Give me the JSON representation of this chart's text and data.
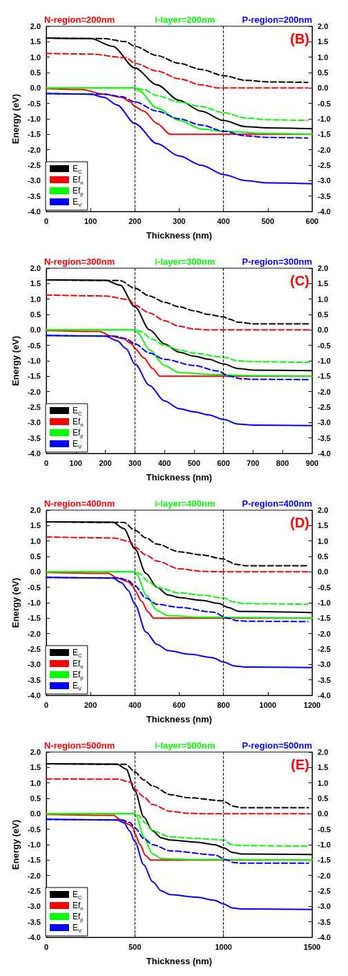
{
  "chart_data": [
    {
      "type": "line",
      "xlabel": "Thickness (nm)",
      "ylabel": "Energy (eV)",
      "annotations": [
        "N-region=200nm",
        "i-layer=200nm",
        "P-region=200nm",
        "(B)"
      ],
      "xlim": [
        0,
        600
      ],
      "xticks": [
        0,
        100,
        200,
        300,
        400,
        500,
        600
      ],
      "ylim": [
        -4,
        2
      ],
      "yticks": [
        {
          "value": 2,
          "label": "2.0"
        },
        {
          "value": 1.5,
          "label": "1.5"
        },
        {
          "value": 1,
          "label": "1.0"
        },
        {
          "value": 0.5,
          "label": "0.5"
        },
        {
          "value": 0,
          "label": "0.0"
        },
        {
          "value": -0.5,
          "label": "-0.5"
        },
        {
          "value": -1,
          "label": "-1.0"
        },
        {
          "value": -1.5,
          "label": "-1.5"
        },
        {
          "value": -2,
          "label": "-2.0"
        },
        {
          "value": -2.5,
          "label": "-2.5"
        },
        {
          "value": -3,
          "label": "-3.0"
        },
        {
          "value": -3.5,
          "label": "-3.5"
        },
        {
          "value": -4,
          "label": "-4.0"
        }
      ],
      "y2lim": [
        -4,
        2
      ],
      "y2ticks": [
        {
          "value": 2,
          "label": "2.0"
        },
        {
          "value": 1.5,
          "label": "1.5"
        },
        {
          "value": 1,
          "label": "1.0"
        },
        {
          "value": 0.5,
          "label": "0.5"
        },
        {
          "value": 0,
          "label": "0.0"
        },
        {
          "value": -0.5,
          "label": "-0.5"
        },
        {
          "value": -1,
          "label": "-1.0"
        },
        {
          "value": -1.5,
          "label": "-1.5"
        },
        {
          "value": -2,
          "label": "-2.0"
        },
        {
          "value": -2.5,
          "label": "-2.5"
        },
        {
          "value": -3,
          "label": "-3.0"
        },
        {
          "value": -3.5,
          "label": "-3.5"
        },
        {
          "value": -4,
          "label": "-4.0"
        }
      ],
      "grid": false,
      "legend": "bottom left",
      "marker": "none",
      "ref_lines": [
        {
          "axis": "x",
          "value": 200,
          "color": "#000000",
          "line_style": "dashed"
        },
        {
          "axis": "x",
          "value": 400,
          "color": "#000000",
          "line_style": "dashed"
        }
      ],
      "series": [
        {
          "name": "E$_{C}$",
          "color": "#000000",
          "line_style": "solid",
          "x": [
            0,
            100,
            150,
            200,
            250,
            300,
            350,
            400,
            450,
            500,
            600
          ],
          "values": [
            1.62,
            1.6,
            1.35,
            0.65,
            0.1,
            -0.4,
            -0.75,
            -1.05,
            -1.25,
            -1.29,
            -1.32
          ]
        },
        {
          "name": "Ef$_{n}$",
          "color": "#ff0000",
          "line_style": "solid",
          "x": [
            0,
            80,
            130,
            170,
            190,
            200,
            220,
            250,
            280,
            600
          ],
          "values": [
            -0.02,
            -0.05,
            -0.2,
            -0.3,
            -0.45,
            -0.6,
            -0.75,
            -1.15,
            -1.5,
            -1.5
          ]
        },
        {
          "name": "Ef$_{p}$",
          "color": "#00ff00",
          "line_style": "solid",
          "x": [
            0,
            200,
            210,
            250,
            300,
            350,
            400,
            500,
            600
          ],
          "values": [
            0,
            0,
            -0.1,
            -0.65,
            -1.05,
            -1.33,
            -1.4,
            -1.47,
            -1.5
          ]
        },
        {
          "name": "E$_{V}$",
          "color": "#0000ff",
          "line_style": "solid",
          "x": [
            0,
            100,
            130,
            160,
            200,
            250,
            300,
            350,
            400,
            450,
            500,
            600
          ],
          "values": [
            -0.18,
            -0.2,
            -0.3,
            -0.55,
            -1.15,
            -1.8,
            -2.2,
            -2.5,
            -2.8,
            -3.0,
            -3.07,
            -3.1
          ]
        },
        {
          "color": "#000000",
          "line_style": "dashed",
          "x": [
            0,
            130,
            180,
            200,
            250,
            300,
            350,
            400,
            450,
            500,
            590
          ],
          "values": [
            1.62,
            1.6,
            1.5,
            1.35,
            1.05,
            0.8,
            0.6,
            0.4,
            0.25,
            0.2,
            0.18
          ]
        },
        {
          "color": "#ff0000",
          "line_style": "dashed",
          "x": [
            0,
            100,
            180,
            200,
            250,
            300,
            350,
            390,
            590
          ],
          "values": [
            1.12,
            1.1,
            0.98,
            0.8,
            0.55,
            0.3,
            0.1,
            0,
            0
          ]
        },
        {
          "color": "#00ff00",
          "line_style": "dashed",
          "x": [
            0,
            200,
            220,
            250,
            300,
            350,
            400,
            450,
            500,
            590
          ],
          "values": [
            0,
            0,
            -0.05,
            -0.25,
            -0.45,
            -0.6,
            -0.8,
            -0.97,
            -1.03,
            -1.05
          ]
        },
        {
          "color": "#0000ff",
          "line_style": "dashed",
          "x": [
            0,
            130,
            170,
            200,
            250,
            300,
            350,
            400,
            450,
            500,
            590
          ],
          "values": [
            -0.18,
            -0.2,
            -0.28,
            -0.45,
            -0.75,
            -1.0,
            -1.2,
            -1.4,
            -1.55,
            -1.6,
            -1.62
          ]
        }
      ]
    },
    {
      "type": "line",
      "xlabel": "Thickness (nm)",
      "ylabel": "Energy (eV)",
      "annotations": [
        "N-region=300nm",
        "i-layer=300nm",
        "P-region=300nm",
        "(C)"
      ],
      "xlim": [
        0,
        900
      ],
      "xticks": [
        0,
        100,
        200,
        300,
        400,
        500,
        600,
        700,
        800,
        900
      ],
      "ylim": [
        -4,
        2
      ],
      "yticks": [
        {
          "value": 2,
          "label": "2.0"
        },
        {
          "value": 1.5,
          "label": "1.5"
        },
        {
          "value": 1,
          "label": "1.0"
        },
        {
          "value": 0.5,
          "label": "0.5"
        },
        {
          "value": 0,
          "label": "0.0"
        },
        {
          "value": -0.5,
          "label": "-0.5"
        },
        {
          "value": -1,
          "label": "-1.0"
        },
        {
          "value": -1.5,
          "label": "-1.5"
        },
        {
          "value": -2,
          "label": "-2.0"
        },
        {
          "value": -2.5,
          "label": "-2.5"
        },
        {
          "value": -3,
          "label": "-3.0"
        },
        {
          "value": -3.5,
          "label": "-3.5"
        },
        {
          "value": -4,
          "label": "-4.0"
        }
      ],
      "y2lim": [
        -4,
        2
      ],
      "y2ticks": [
        {
          "value": 2,
          "label": "2.0"
        },
        {
          "value": 1.5,
          "label": "1.5"
        },
        {
          "value": 1,
          "label": "1.0"
        },
        {
          "value": 0.5,
          "label": "0.5"
        },
        {
          "value": 0,
          "label": "0.0"
        },
        {
          "value": -0.5,
          "label": "-0.5"
        },
        {
          "value": -1,
          "label": "-1.0"
        },
        {
          "value": -1.5,
          "label": "-1.5"
        },
        {
          "value": -2,
          "label": "-2.0"
        },
        {
          "value": -2.5,
          "label": "-2.5"
        },
        {
          "value": -3,
          "label": "-3.0"
        },
        {
          "value": -3.5,
          "label": "-3.5"
        },
        {
          "value": -4,
          "label": "-4.0"
        }
      ],
      "grid": false,
      "legend": "bottom left",
      "marker": "none",
      "ref_lines": [
        {
          "axis": "x",
          "value": 300,
          "color": "#000000",
          "line_style": "dashed"
        },
        {
          "axis": "x",
          "value": 600,
          "color": "#000000",
          "line_style": "dashed"
        }
      ],
      "series": [
        {
          "name": "E$_{C}$",
          "color": "#000000",
          "line_style": "solid",
          "x": [
            0,
            200,
            250,
            300,
            350,
            400,
            450,
            500,
            550,
            600,
            650,
            700,
            900
          ],
          "values": [
            1.62,
            1.61,
            1.45,
            0.75,
            0.0,
            -0.45,
            -0.72,
            -0.85,
            -0.95,
            -1.1,
            -1.25,
            -1.3,
            -1.32
          ]
        },
        {
          "name": "Ef$_{n}$",
          "color": "#ff0000",
          "line_style": "solid",
          "x": [
            0,
            180,
            220,
            260,
            290,
            300,
            330,
            360,
            385,
            900
          ],
          "values": [
            -0.02,
            -0.05,
            -0.2,
            -0.28,
            -0.45,
            -0.6,
            -0.9,
            -1.25,
            -1.5,
            -1.5
          ]
        },
        {
          "name": "Ef$_{p}$",
          "color": "#00ff00",
          "line_style": "solid",
          "x": [
            0,
            300,
            310,
            350,
            400,
            450,
            550,
            700,
            900
          ],
          "values": [
            0,
            0,
            -0.1,
            -0.65,
            -1.15,
            -1.38,
            -1.44,
            -1.48,
            -1.5
          ]
        },
        {
          "name": "E$_{V}$",
          "color": "#0000ff",
          "line_style": "solid",
          "x": [
            0,
            200,
            240,
            270,
            300,
            350,
            400,
            450,
            500,
            550,
            600,
            650,
            700,
            900
          ],
          "values": [
            -0.18,
            -0.2,
            -0.35,
            -0.6,
            -1.1,
            -1.8,
            -2.3,
            -2.55,
            -2.65,
            -2.75,
            -2.9,
            -3.05,
            -3.08,
            -3.1
          ]
        },
        {
          "color": "#000000",
          "line_style": "dashed",
          "x": [
            0,
            250,
            300,
            350,
            400,
            450,
            500,
            550,
            600,
            620,
            650,
            700,
            890
          ],
          "values": [
            1.62,
            1.6,
            1.35,
            1.1,
            0.9,
            0.75,
            0.62,
            0.5,
            0.42,
            0.35,
            0.25,
            0.2,
            0.2
          ]
        },
        {
          "color": "#ff0000",
          "line_style": "dashed",
          "x": [
            0,
            200,
            280,
            300,
            350,
            400,
            450,
            500,
            550,
            890
          ],
          "values": [
            1.13,
            1.1,
            0.98,
            0.8,
            0.55,
            0.3,
            0.12,
            0.03,
            0,
            0
          ]
        },
        {
          "color": "#00ff00",
          "line_style": "dashed",
          "x": [
            0,
            300,
            320,
            360,
            400,
            450,
            500,
            600,
            650,
            700,
            890
          ],
          "values": [
            0,
            0,
            -0.05,
            -0.3,
            -0.5,
            -0.65,
            -0.75,
            -0.88,
            -1.0,
            -1.03,
            -1.05
          ]
        },
        {
          "color": "#0000ff",
          "line_style": "dashed",
          "x": [
            0,
            230,
            270,
            300,
            350,
            400,
            500,
            580,
            620,
            660,
            700,
            890
          ],
          "values": [
            -0.18,
            -0.2,
            -0.28,
            -0.45,
            -0.75,
            -0.95,
            -1.15,
            -1.33,
            -1.5,
            -1.58,
            -1.6,
            -1.61
          ]
        }
      ]
    },
    {
      "type": "line",
      "xlabel": "Thickness (nm)",
      "ylabel": "Energy (eV)",
      "annotations": [
        "N-region=400nm",
        "i-layer=400nm",
        "P-region=400nm",
        "(D)"
      ],
      "xlim": [
        0,
        1200
      ],
      "xticks": [
        0,
        200,
        400,
        600,
        800,
        1000,
        1200
      ],
      "ylim": [
        -4,
        2
      ],
      "yticks": [
        {
          "value": 2,
          "label": "2.0"
        },
        {
          "value": 1.5,
          "label": "1.5"
        },
        {
          "value": 1,
          "label": "1.0"
        },
        {
          "value": 0.5,
          "label": "0.5"
        },
        {
          "value": 0,
          "label": "0.0"
        },
        {
          "value": -0.5,
          "label": "-0.5"
        },
        {
          "value": -1,
          "label": "-1.0"
        },
        {
          "value": -1.5,
          "label": "-1.5"
        },
        {
          "value": -2,
          "label": "-2.0"
        },
        {
          "value": -2.5,
          "label": "-2.5"
        },
        {
          "value": -3,
          "label": "-3.0"
        },
        {
          "value": -3.5,
          "label": "-3.5"
        },
        {
          "value": -4,
          "label": "-4.0"
        }
      ],
      "y2lim": [
        -4,
        2
      ],
      "y2ticks": [
        {
          "value": 2,
          "label": "2.0"
        },
        {
          "value": 1.5,
          "label": "1.5"
        },
        {
          "value": 1,
          "label": "1.0"
        },
        {
          "value": 0.5,
          "label": "0.5"
        },
        {
          "value": 0,
          "label": "0.0"
        },
        {
          "value": -0.5,
          "label": "-0.5"
        },
        {
          "value": -1,
          "label": "-1.0"
        },
        {
          "value": -1.5,
          "label": "-1.5"
        },
        {
          "value": -2,
          "label": "-2.0"
        },
        {
          "value": -2.5,
          "label": "-2.5"
        },
        {
          "value": -3,
          "label": "-3.0"
        },
        {
          "value": -3.5,
          "label": "-3.5"
        },
        {
          "value": -4,
          "label": "-4.0"
        }
      ],
      "grid": false,
      "legend": "bottom left",
      "marker": "none",
      "ref_lines": [
        {
          "axis": "x",
          "value": 400,
          "color": "#000000",
          "line_style": "dashed"
        },
        {
          "axis": "x",
          "value": 800,
          "color": "#000000",
          "line_style": "dashed"
        }
      ],
      "series": [
        {
          "name": "E$_{C}$",
          "color": "#000000",
          "line_style": "solid",
          "x": [
            0,
            300,
            350,
            400,
            450,
            500,
            550,
            600,
            700,
            780,
            820,
            870,
            1200
          ],
          "values": [
            1.62,
            1.61,
            1.4,
            0.75,
            -0.05,
            -0.5,
            -0.75,
            -0.83,
            -0.92,
            -1.02,
            -1.15,
            -1.28,
            -1.32
          ]
        },
        {
          "name": "Ef$_{n}$",
          "color": "#ff0000",
          "line_style": "solid",
          "x": [
            0,
            280,
            320,
            370,
            390,
            400,
            430,
            460,
            485,
            1200
          ],
          "values": [
            -0.02,
            -0.05,
            -0.2,
            -0.32,
            -0.45,
            -0.6,
            -0.95,
            -1.3,
            -1.5,
            -1.5
          ]
        },
        {
          "name": "Ef$_{p}$",
          "color": "#00ff00",
          "line_style": "solid",
          "x": [
            0,
            400,
            410,
            450,
            500,
            550,
            700,
            1200
          ],
          "values": [
            0,
            0,
            -0.1,
            -0.75,
            -1.25,
            -1.42,
            -1.47,
            -1.5
          ]
        },
        {
          "name": "E$_{V}$",
          "color": "#0000ff",
          "line_style": "solid",
          "x": [
            0,
            300,
            340,
            370,
            400,
            450,
            500,
            550,
            650,
            750,
            800,
            850,
            900,
            1200
          ],
          "values": [
            -0.18,
            -0.2,
            -0.35,
            -0.6,
            -1.05,
            -1.95,
            -2.35,
            -2.55,
            -2.67,
            -2.78,
            -2.92,
            -3.05,
            -3.08,
            -3.1
          ]
        },
        {
          "color": "#000000",
          "line_style": "dashed",
          "x": [
            0,
            350,
            400,
            450,
            500,
            600,
            700,
            800,
            820,
            850,
            900,
            1180
          ],
          "values": [
            1.62,
            1.6,
            1.35,
            1.1,
            0.9,
            0.65,
            0.55,
            0.42,
            0.35,
            0.25,
            0.2,
            0.2
          ]
        },
        {
          "color": "#ff0000",
          "line_style": "dashed",
          "x": [
            0,
            300,
            380,
            400,
            450,
            500,
            600,
            700,
            800,
            1180
          ],
          "values": [
            1.13,
            1.1,
            0.98,
            0.8,
            0.55,
            0.35,
            0.1,
            0.02,
            0,
            0
          ]
        },
        {
          "color": "#00ff00",
          "line_style": "dashed",
          "x": [
            0,
            400,
            420,
            460,
            500,
            600,
            700,
            800,
            850,
            900,
            1180
          ],
          "values": [
            0,
            0,
            -0.05,
            -0.3,
            -0.5,
            -0.68,
            -0.75,
            -0.85,
            -0.98,
            -1.03,
            -1.05
          ]
        },
        {
          "color": "#0000ff",
          "line_style": "dashed",
          "x": [
            0,
            330,
            370,
            400,
            450,
            500,
            600,
            750,
            820,
            860,
            900,
            1180
          ],
          "values": [
            -0.18,
            -0.2,
            -0.28,
            -0.45,
            -0.85,
            -1.05,
            -1.15,
            -1.3,
            -1.5,
            -1.58,
            -1.6,
            -1.61
          ]
        }
      ]
    },
    {
      "type": "line",
      "xlabel": "Thickness (nm)",
      "ylabel": "Energy (eV)",
      "annotations": [
        "N-region=500nm",
        "i-layer=500nm",
        "P-region=500nm",
        "(E)"
      ],
      "xlim": [
        0,
        1500
      ],
      "xticks": [
        0,
        500,
        1000,
        1500
      ],
      "ylim": [
        -4,
        2
      ],
      "yticks": [
        {
          "value": 2,
          "label": "2.0"
        },
        {
          "value": 1.5,
          "label": "1.5"
        },
        {
          "value": 1,
          "label": "1.0"
        },
        {
          "value": 0.5,
          "label": "0.5"
        },
        {
          "value": 0,
          "label": "0.0"
        },
        {
          "value": -0.5,
          "label": "-0.5"
        },
        {
          "value": -1,
          "label": "-1.0"
        },
        {
          "value": -1.5,
          "label": "-1.5"
        },
        {
          "value": -2,
          "label": "-2.0"
        },
        {
          "value": -2.5,
          "label": "-2.5"
        },
        {
          "value": -3,
          "label": "-3.0"
        },
        {
          "value": -3.5,
          "label": "-3.5"
        },
        {
          "value": -4,
          "label": "-4.0"
        }
      ],
      "y2lim": [
        -4,
        2
      ],
      "y2ticks": [
        {
          "value": 2,
          "label": "2.0"
        },
        {
          "value": 1.5,
          "label": "1.5"
        },
        {
          "value": 1,
          "label": "1.0"
        },
        {
          "value": 0.5,
          "label": "0.5"
        },
        {
          "value": 0,
          "label": "0.0"
        },
        {
          "value": -0.5,
          "label": "-0.5"
        },
        {
          "value": -1,
          "label": "-1.0"
        },
        {
          "value": -1.5,
          "label": "-1.5"
        },
        {
          "value": -2,
          "label": "-2.0"
        },
        {
          "value": -2.5,
          "label": "-2.5"
        },
        {
          "value": -3,
          "label": "-3.0"
        },
        {
          "value": -3.5,
          "label": "-3.5"
        },
        {
          "value": -4,
          "label": "-4.0"
        }
      ],
      "grid": false,
      "legend": "bottom left",
      "marker": "none",
      "ref_lines": [
        {
          "axis": "x",
          "value": 500,
          "color": "#000000",
          "line_style": "dashed"
        },
        {
          "axis": "x",
          "value": 1000,
          "color": "#000000",
          "line_style": "dashed"
        }
      ],
      "series": [
        {
          "name": "E$_{C}$",
          "color": "#000000",
          "line_style": "solid",
          "x": [
            0,
            400,
            450,
            500,
            550,
            600,
            650,
            700,
            850,
            950,
            1000,
            1050,
            1100,
            1500
          ],
          "values": [
            1.62,
            1.61,
            1.45,
            0.75,
            -0.1,
            -0.55,
            -0.78,
            -0.85,
            -0.92,
            -1.0,
            -1.1,
            -1.25,
            -1.3,
            -1.32
          ]
        },
        {
          "name": "Ef$_{n}$",
          "color": "#ff0000",
          "line_style": "solid",
          "x": [
            0,
            380,
            420,
            470,
            490,
            500,
            530,
            560,
            590,
            1500
          ],
          "values": [
            -0.02,
            -0.05,
            -0.2,
            -0.35,
            -0.45,
            -0.65,
            -1.0,
            -1.35,
            -1.5,
            -1.5
          ]
        },
        {
          "name": "Ef$_{p}$",
          "color": "#00ff00",
          "line_style": "solid",
          "x": [
            0,
            500,
            510,
            550,
            600,
            650,
            800,
            1500
          ],
          "values": [
            0,
            0,
            -0.1,
            -0.75,
            -1.3,
            -1.45,
            -1.48,
            -1.5
          ]
        },
        {
          "name": "E$_{V}$",
          "color": "#0000ff",
          "line_style": "solid",
          "x": [
            0,
            400,
            440,
            470,
            500,
            550,
            600,
            650,
            700,
            850,
            950,
            1000,
            1050,
            1100,
            1500
          ],
          "values": [
            -0.18,
            -0.2,
            -0.3,
            -0.55,
            -0.9,
            -1.65,
            -2.2,
            -2.5,
            -2.62,
            -2.7,
            -2.8,
            -2.92,
            -3.05,
            -3.08,
            -3.1
          ]
        },
        {
          "color": "#000000",
          "line_style": "dashed",
          "x": [
            0,
            450,
            500,
            550,
            600,
            700,
            800,
            1000,
            1020,
            1050,
            1100,
            1480
          ],
          "values": [
            1.62,
            1.6,
            1.35,
            1.1,
            0.9,
            0.62,
            0.52,
            0.42,
            0.35,
            0.25,
            0.2,
            0.2
          ]
        },
        {
          "color": "#ff0000",
          "line_style": "dashed",
          "x": [
            0,
            400,
            480,
            500,
            550,
            600,
            700,
            800,
            900,
            1480
          ],
          "values": [
            1.13,
            1.12,
            1.02,
            0.8,
            0.55,
            0.3,
            0.08,
            0.02,
            0,
            0
          ]
        },
        {
          "color": "#00ff00",
          "line_style": "dashed",
          "x": [
            0,
            500,
            520,
            560,
            600,
            700,
            850,
            1000,
            1050,
            1100,
            1480
          ],
          "values": [
            0,
            0,
            -0.05,
            -0.3,
            -0.55,
            -0.75,
            -0.8,
            -0.85,
            -1.0,
            -1.03,
            -1.05
          ]
        },
        {
          "color": "#0000ff",
          "line_style": "dashed",
          "x": [
            0,
            430,
            470,
            500,
            550,
            600,
            700,
            950,
            1020,
            1060,
            1100,
            1480
          ],
          "values": [
            -0.18,
            -0.2,
            -0.28,
            -0.45,
            -0.8,
            -1.0,
            -1.2,
            -1.33,
            -1.5,
            -1.58,
            -1.6,
            -1.6
          ]
        }
      ]
    }
  ]
}
